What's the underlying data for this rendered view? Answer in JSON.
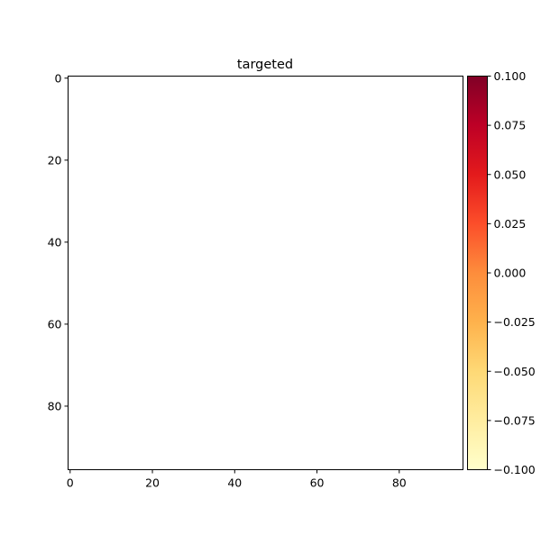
{
  "chart_data": {
    "type": "heatmap",
    "title": "targeted",
    "xlabel": "",
    "ylabel": "",
    "xlim": [
      -0.5,
      95.5
    ],
    "ylim": [
      95.5,
      -0.5
    ],
    "x_ticks": [
      0,
      20,
      40,
      60,
      80
    ],
    "y_ticks": [
      0,
      20,
      40,
      60,
      80
    ],
    "x_tick_labels": [
      "0",
      "20",
      "40",
      "60",
      "80"
    ],
    "y_tick_labels": [
      "0",
      "20",
      "40",
      "60",
      "80"
    ],
    "grid": false,
    "image_appearance": "blank (white)",
    "colorbar": {
      "colormap": "YlOrRd",
      "range": [
        -0.1,
        0.1
      ],
      "ticks": [
        -0.1,
        -0.075,
        -0.05,
        -0.025,
        0.0,
        0.025,
        0.05,
        0.075,
        0.1
      ],
      "tick_labels": [
        "−0.100",
        "−0.075",
        "−0.050",
        "−0.025",
        "0.000",
        "0.025",
        "0.050",
        "0.075",
        "0.100"
      ],
      "colors": [
        "#ffffcc",
        "#ffeda0",
        "#fed976",
        "#feb24c",
        "#fd8d3c",
        "#fc4e2a",
        "#e31a1c",
        "#bd0026",
        "#800026"
      ]
    }
  }
}
